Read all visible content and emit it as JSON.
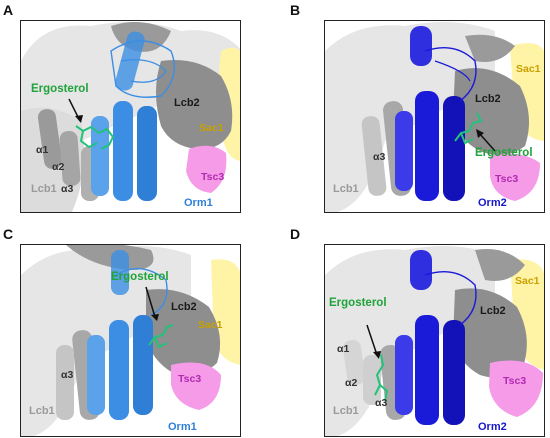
{
  "panels": [
    {
      "letter": "A",
      "ergosterol": "Ergosterol",
      "lcb2": "Lcb2",
      "sac1": "Sac1",
      "tsc3": "Tsc3",
      "lcb1": "Lcb1",
      "helices": [
        "α1",
        "α2",
        "α3"
      ],
      "orm": "Orm1"
    },
    {
      "letter": "B",
      "ergosterol": "Ergosterol",
      "lcb2": "Lcb2",
      "sac1": "Sac1",
      "tsc3": "Tsc3",
      "lcb1": "Lcb1",
      "helices": [
        "α3"
      ],
      "orm": "Orm2"
    },
    {
      "letter": "C",
      "ergosterol": "Ergosterol",
      "lcb2": "Lcb2",
      "sac1": "Sac1",
      "tsc3": "Tsc3",
      "lcb1": "Lcb1",
      "helices": [
        "α3"
      ],
      "orm": "Orm1"
    },
    {
      "letter": "D",
      "ergosterol": "Ergosterol",
      "lcb2": "Lcb2",
      "sac1": "Sac1",
      "tsc3": "Tsc3",
      "lcb1": "Lcb1",
      "helices": [
        "α1",
        "α2",
        "α3"
      ],
      "orm": "Orm2"
    }
  ],
  "colors": {
    "orm1": "#3b8ee3",
    "orm2": "#1a1ad9",
    "ergosterol": "#22c27a",
    "sac1": "#fff3a6",
    "tsc3": "#f59be8",
    "lcb2": "#8c8c8c",
    "lcb1": "#bdbdbd"
  }
}
